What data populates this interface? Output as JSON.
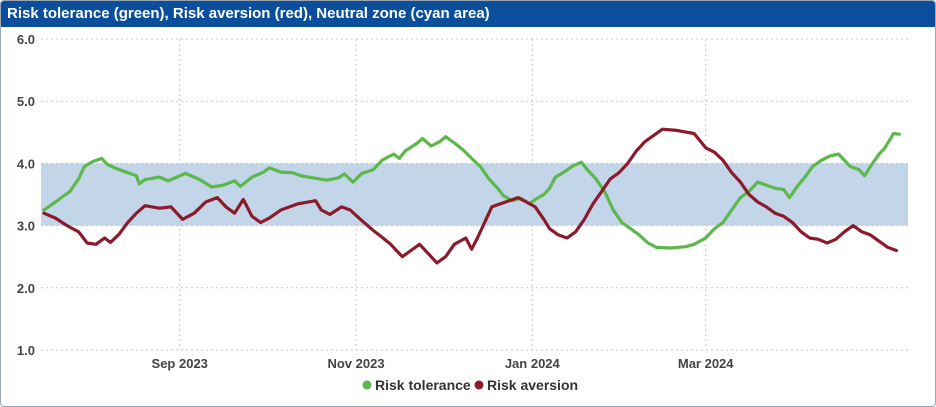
{
  "title": "Risk tolerance (green), Risk aversion (red), Neutral zone (cyan area)",
  "chart_data": {
    "type": "line",
    "title": "Risk tolerance (green), Risk aversion (red), Neutral zone (cyan area)",
    "ylim": [
      1.0,
      6.0
    ],
    "yticks": [
      "1.0",
      "2.0",
      "3.0",
      "4.0",
      "5.0",
      "6.0"
    ],
    "xlim": [
      "2023-07-15",
      "2024-05-10"
    ],
    "xticks": [
      {
        "label": "Sep 2023",
        "date": "2023-09-01"
      },
      {
        "label": "Nov 2023",
        "date": "2023-11-01"
      },
      {
        "label": "Jan 2024",
        "date": "2024-01-01"
      },
      {
        "label": "Mar 2024",
        "date": "2024-03-01"
      }
    ],
    "neutral_band": {
      "from": 3.0,
      "to": 4.0,
      "color": "#c3d5e8"
    },
    "grid": true,
    "legend_position": "bottom-center",
    "series": [
      {
        "name": "Risk tolerance",
        "color": "#5cb84a",
        "points": [
          [
            "2023-07-16",
            3.25
          ],
          [
            "2023-07-20",
            3.38
          ],
          [
            "2023-07-25",
            3.55
          ],
          [
            "2023-07-28",
            3.75
          ],
          [
            "2023-07-30",
            3.95
          ],
          [
            "2023-08-02",
            4.03
          ],
          [
            "2023-08-05",
            4.08
          ],
          [
            "2023-08-07",
            3.98
          ],
          [
            "2023-08-10",
            3.92
          ],
          [
            "2023-08-14",
            3.85
          ],
          [
            "2023-08-17",
            3.8
          ],
          [
            "2023-08-18",
            3.67
          ],
          [
            "2023-08-20",
            3.74
          ],
          [
            "2023-08-25",
            3.78
          ],
          [
            "2023-08-28",
            3.72
          ],
          [
            "2023-08-31",
            3.78
          ],
          [
            "2023-09-03",
            3.84
          ],
          [
            "2023-09-08",
            3.74
          ],
          [
            "2023-09-12",
            3.62
          ],
          [
            "2023-09-16",
            3.65
          ],
          [
            "2023-09-20",
            3.72
          ],
          [
            "2023-09-22",
            3.63
          ],
          [
            "2023-09-26",
            3.78
          ],
          [
            "2023-09-30",
            3.86
          ],
          [
            "2023-10-02",
            3.93
          ],
          [
            "2023-10-06",
            3.86
          ],
          [
            "2023-10-10",
            3.85
          ],
          [
            "2023-10-13",
            3.8
          ],
          [
            "2023-10-18",
            3.76
          ],
          [
            "2023-10-22",
            3.73
          ],
          [
            "2023-10-26",
            3.77
          ],
          [
            "2023-10-28",
            3.83
          ],
          [
            "2023-10-31",
            3.7
          ],
          [
            "2023-11-03",
            3.84
          ],
          [
            "2023-11-07",
            3.9
          ],
          [
            "2023-11-10",
            4.05
          ],
          [
            "2023-11-14",
            4.15
          ],
          [
            "2023-11-16",
            4.08
          ],
          [
            "2023-11-18",
            4.2
          ],
          [
            "2023-11-22",
            4.32
          ],
          [
            "2023-11-24",
            4.4
          ],
          [
            "2023-11-27",
            4.28
          ],
          [
            "2023-11-30",
            4.35
          ],
          [
            "2023-12-02",
            4.43
          ],
          [
            "2023-12-05",
            4.33
          ],
          [
            "2023-12-08",
            4.22
          ],
          [
            "2023-12-11",
            4.08
          ],
          [
            "2023-12-14",
            3.95
          ],
          [
            "2023-12-17",
            3.75
          ],
          [
            "2023-12-20",
            3.6
          ],
          [
            "2023-12-22",
            3.48
          ],
          [
            "2023-12-25",
            3.4
          ],
          [
            "2023-12-28",
            3.44
          ],
          [
            "2023-12-31",
            3.35
          ],
          [
            "2024-01-02",
            3.42
          ],
          [
            "2024-01-05",
            3.5
          ],
          [
            "2024-01-07",
            3.6
          ],
          [
            "2024-01-09",
            3.78
          ],
          [
            "2024-01-12",
            3.86
          ],
          [
            "2024-01-15",
            3.96
          ],
          [
            "2024-01-18",
            4.02
          ],
          [
            "2024-01-20",
            3.9
          ],
          [
            "2024-01-23",
            3.75
          ],
          [
            "2024-01-26",
            3.55
          ],
          [
            "2024-01-29",
            3.25
          ],
          [
            "2024-02-01",
            3.05
          ],
          [
            "2024-02-04",
            2.95
          ],
          [
            "2024-02-07",
            2.85
          ],
          [
            "2024-02-10",
            2.72
          ],
          [
            "2024-02-13",
            2.65
          ],
          [
            "2024-02-18",
            2.64
          ],
          [
            "2024-02-23",
            2.66
          ],
          [
            "2024-02-26",
            2.7
          ],
          [
            "2024-03-01",
            2.8
          ],
          [
            "2024-03-04",
            2.95
          ],
          [
            "2024-03-07",
            3.05
          ],
          [
            "2024-03-10",
            3.25
          ],
          [
            "2024-03-13",
            3.45
          ],
          [
            "2024-03-16",
            3.55
          ],
          [
            "2024-03-19",
            3.7
          ],
          [
            "2024-03-22",
            3.65
          ],
          [
            "2024-03-25",
            3.6
          ],
          [
            "2024-03-28",
            3.58
          ],
          [
            "2024-03-30",
            3.45
          ],
          [
            "2024-04-02",
            3.65
          ],
          [
            "2024-04-05",
            3.82
          ],
          [
            "2024-04-07",
            3.95
          ],
          [
            "2024-04-10",
            4.05
          ],
          [
            "2024-04-13",
            4.12
          ],
          [
            "2024-04-16",
            4.15
          ],
          [
            "2024-04-18",
            4.05
          ],
          [
            "2024-04-20",
            3.95
          ],
          [
            "2024-04-23",
            3.9
          ],
          [
            "2024-04-25",
            3.8
          ],
          [
            "2024-04-27",
            3.95
          ],
          [
            "2024-04-30",
            4.15
          ],
          [
            "2024-05-02",
            4.25
          ],
          [
            "2024-05-05",
            4.48
          ],
          [
            "2024-05-07",
            4.47
          ]
        ]
      },
      {
        "name": "Risk aversion",
        "color": "#8b1a2b",
        "points": [
          [
            "2023-07-16",
            3.2
          ],
          [
            "2023-07-20",
            3.12
          ],
          [
            "2023-07-24",
            3.0
          ],
          [
            "2023-07-28",
            2.9
          ],
          [
            "2023-07-31",
            2.72
          ],
          [
            "2023-08-03",
            2.7
          ],
          [
            "2023-08-06",
            2.8
          ],
          [
            "2023-08-08",
            2.73
          ],
          [
            "2023-08-11",
            2.86
          ],
          [
            "2023-08-14",
            3.05
          ],
          [
            "2023-08-17",
            3.2
          ],
          [
            "2023-08-20",
            3.32
          ],
          [
            "2023-08-25",
            3.28
          ],
          [
            "2023-08-29",
            3.3
          ],
          [
            "2023-09-02",
            3.1
          ],
          [
            "2023-09-06",
            3.2
          ],
          [
            "2023-09-10",
            3.38
          ],
          [
            "2023-09-14",
            3.45
          ],
          [
            "2023-09-17",
            3.3
          ],
          [
            "2023-09-20",
            3.2
          ],
          [
            "2023-09-23",
            3.42
          ],
          [
            "2023-09-26",
            3.15
          ],
          [
            "2023-09-29",
            3.05
          ],
          [
            "2023-10-02",
            3.12
          ],
          [
            "2023-10-06",
            3.25
          ],
          [
            "2023-10-12",
            3.35
          ],
          [
            "2023-10-18",
            3.4
          ],
          [
            "2023-10-20",
            3.25
          ],
          [
            "2023-10-23",
            3.18
          ],
          [
            "2023-10-27",
            3.3
          ],
          [
            "2023-10-30",
            3.25
          ],
          [
            "2023-11-03",
            3.08
          ],
          [
            "2023-11-07",
            2.92
          ],
          [
            "2023-11-09",
            2.85
          ],
          [
            "2023-11-13",
            2.7
          ],
          [
            "2023-11-17",
            2.5
          ],
          [
            "2023-11-20",
            2.6
          ],
          [
            "2023-11-23",
            2.7
          ],
          [
            "2023-11-26",
            2.55
          ],
          [
            "2023-11-29",
            2.4
          ],
          [
            "2023-12-02",
            2.5
          ],
          [
            "2023-12-05",
            2.7
          ],
          [
            "2023-12-09",
            2.8
          ],
          [
            "2023-12-11",
            2.62
          ],
          [
            "2023-12-13",
            2.8
          ],
          [
            "2023-12-15",
            3.0
          ],
          [
            "2023-12-18",
            3.3
          ],
          [
            "2023-12-21",
            3.35
          ],
          [
            "2023-12-24",
            3.4
          ],
          [
            "2023-12-27",
            3.45
          ],
          [
            "2023-12-30",
            3.38
          ],
          [
            "2024-01-02",
            3.3
          ],
          [
            "2024-01-05",
            3.1
          ],
          [
            "2024-01-07",
            2.95
          ],
          [
            "2024-01-10",
            2.85
          ],
          [
            "2024-01-13",
            2.8
          ],
          [
            "2024-01-16",
            2.9
          ],
          [
            "2024-01-19",
            3.1
          ],
          [
            "2024-01-22",
            3.35
          ],
          [
            "2024-01-25",
            3.55
          ],
          [
            "2024-01-28",
            3.75
          ],
          [
            "2024-01-31",
            3.85
          ],
          [
            "2024-02-03",
            4.0
          ],
          [
            "2024-02-06",
            4.2
          ],
          [
            "2024-02-09",
            4.35
          ],
          [
            "2024-02-12",
            4.45
          ],
          [
            "2024-02-15",
            4.55
          ],
          [
            "2024-02-20",
            4.53
          ],
          [
            "2024-02-26",
            4.48
          ],
          [
            "2024-03-01",
            4.25
          ],
          [
            "2024-03-04",
            4.18
          ],
          [
            "2024-03-07",
            4.05
          ],
          [
            "2024-03-10",
            3.85
          ],
          [
            "2024-03-13",
            3.7
          ],
          [
            "2024-03-16",
            3.5
          ],
          [
            "2024-03-19",
            3.38
          ],
          [
            "2024-03-22",
            3.3
          ],
          [
            "2024-03-25",
            3.2
          ],
          [
            "2024-03-28",
            3.15
          ],
          [
            "2024-03-31",
            3.05
          ],
          [
            "2024-04-03",
            2.9
          ],
          [
            "2024-04-06",
            2.8
          ],
          [
            "2024-04-09",
            2.78
          ],
          [
            "2024-04-12",
            2.72
          ],
          [
            "2024-04-15",
            2.78
          ],
          [
            "2024-04-18",
            2.9
          ],
          [
            "2024-04-21",
            3.0
          ],
          [
            "2024-04-24",
            2.9
          ],
          [
            "2024-04-27",
            2.85
          ],
          [
            "2024-04-30",
            2.75
          ],
          [
            "2024-05-03",
            2.65
          ],
          [
            "2024-05-06",
            2.6
          ]
        ]
      }
    ]
  }
}
